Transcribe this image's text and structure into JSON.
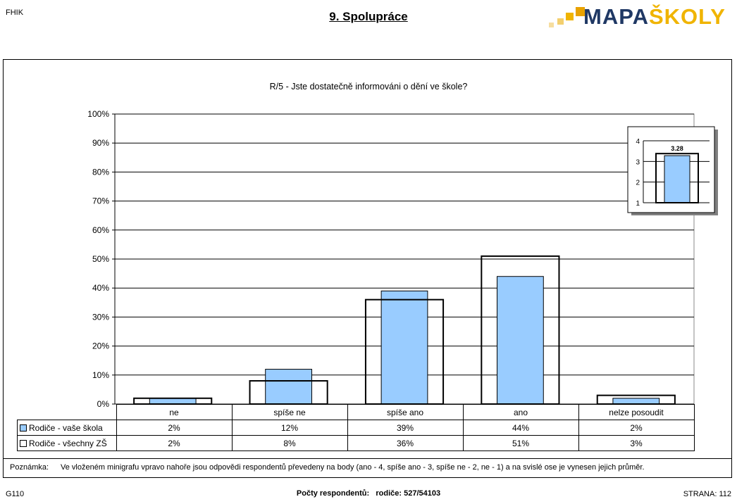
{
  "header": {
    "code": "FHIK",
    "title": "9. Spolupráce",
    "logo_text": "MAPAŠKOLY"
  },
  "colors": {
    "series_school": "#99ccff",
    "series_all": "#ffffff",
    "logo_dark": "#1f3864",
    "logo_accent": "#f0b400"
  },
  "chart_data": [
    {
      "type": "bar",
      "title": "R/5 - Jste dostatečně informováni o dění ve škole?",
      "categories": [
        "ne",
        "spíše ne",
        "spíše ano",
        "ano",
        "nelze posoudit"
      ],
      "series": [
        {
          "name": "Rodiče - vaše škola",
          "values": [
            2,
            12,
            39,
            44,
            2
          ],
          "labels": [
            "2%",
            "12%",
            "39%",
            "44%",
            "2%"
          ],
          "style": "filled"
        },
        {
          "name": "Rodiče - všechny ZŠ",
          "values": [
            2,
            8,
            36,
            51,
            3
          ],
          "labels": [
            "2%",
            "8%",
            "36%",
            "51%",
            "3%"
          ],
          "style": "outline"
        }
      ],
      "ylim": [
        0,
        100
      ],
      "yticks": [
        "0%",
        "10%",
        "20%",
        "30%",
        "40%",
        "50%",
        "60%",
        "70%",
        "80%",
        "90%",
        "100%"
      ],
      "grid": true,
      "data_table": true
    },
    {
      "type": "bar",
      "title": "",
      "categories": [
        ""
      ],
      "series": [
        {
          "name": "Rodiče - vaše škola",
          "values": [
            3.28
          ],
          "style": "filled"
        },
        {
          "name": "Rodiče - všechny ZŠ",
          "values": [
            3.38
          ],
          "style": "outline"
        }
      ],
      "value_label": "3.28",
      "ylim": [
        1,
        4
      ],
      "yticks": [
        "1",
        "2",
        "3",
        "4"
      ],
      "legend_position": "top-right inset"
    }
  ],
  "note": {
    "label": "Poznámka:",
    "text": "Ve vloženém minigrafu vpravo nahoře jsou odpovědi respondentů převedeny na body (ano - 4, spíše ano - 3, spíše ne - 2, ne - 1) a na svislé ose je vynesen jejich průměr."
  },
  "footer": {
    "code": "G110",
    "respondents_label": "Počty respondentů:",
    "respondents_value": "rodiče: 527/54103",
    "page_label": "STRANA: 112"
  }
}
